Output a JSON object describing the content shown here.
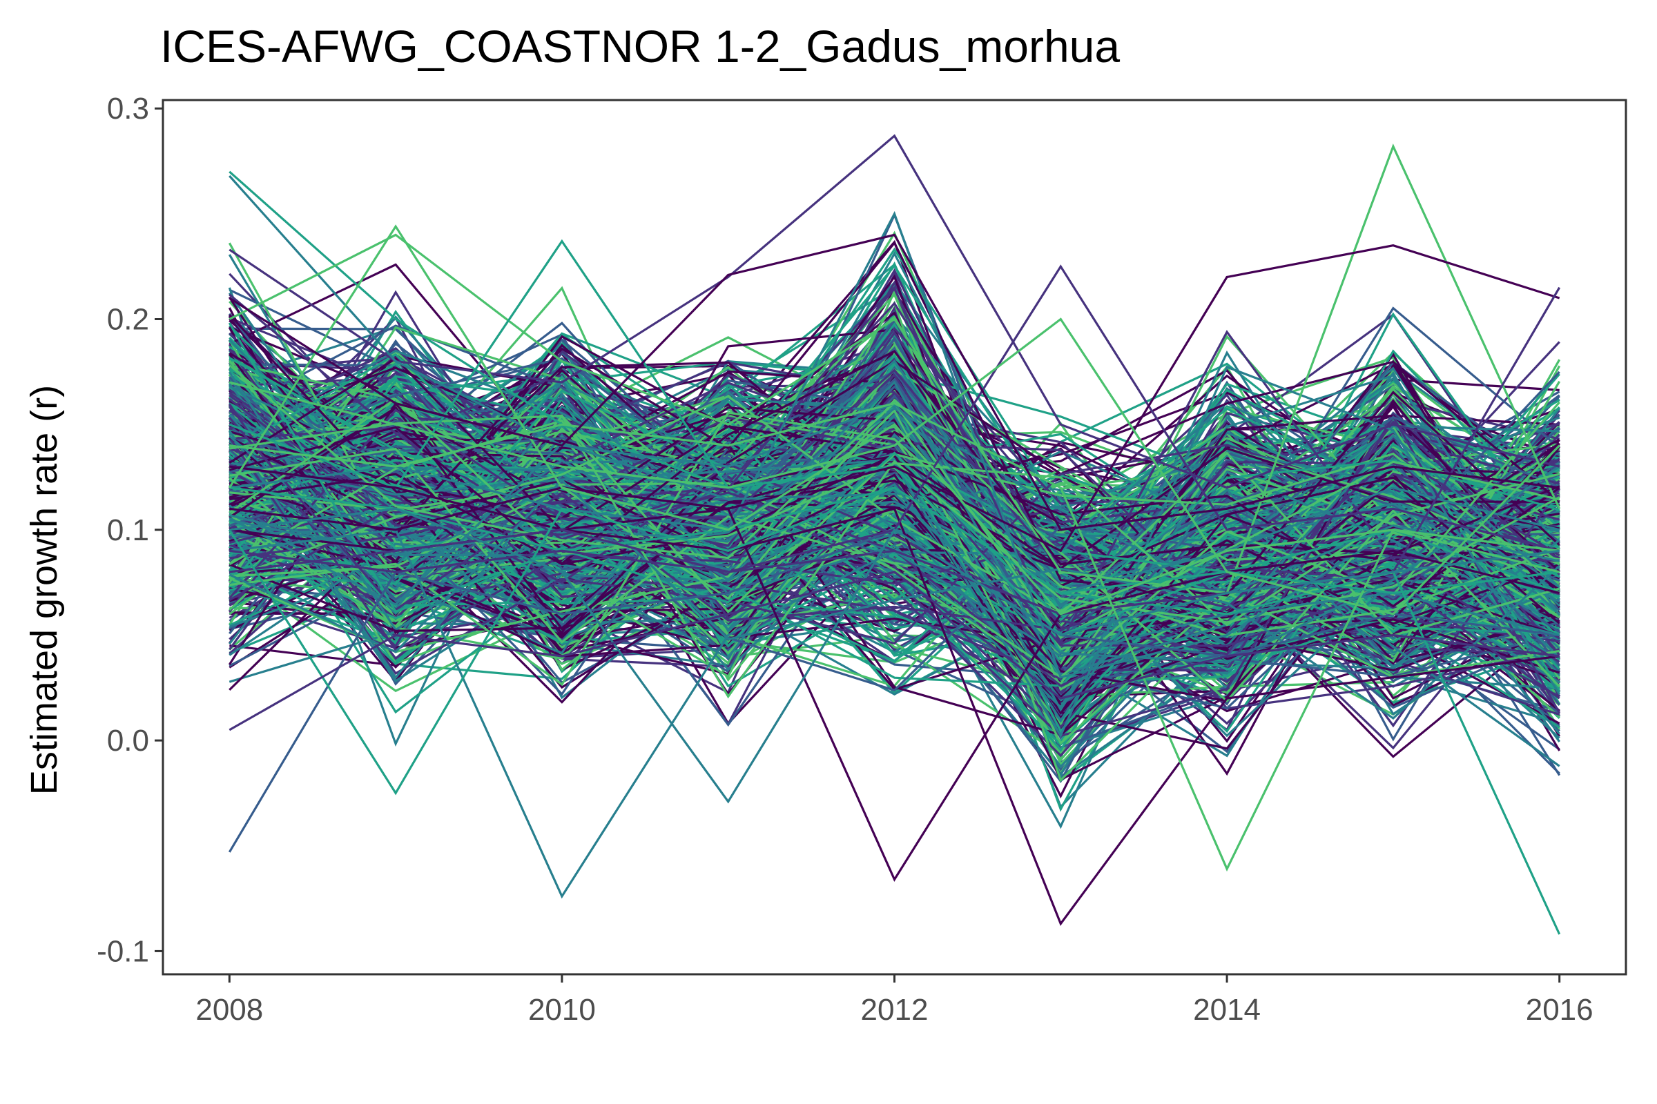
{
  "chart_data": {
    "type": "line",
    "title": "ICES-AFWG_COASTNOR 1-2_Gadus_morhua",
    "xlabel": "",
    "ylabel": "Estimated growth rate (r)",
    "xlim": [
      2007.6,
      2016.4
    ],
    "ylim": [
      -0.111,
      0.304
    ],
    "x": [
      2008,
      2009,
      2010,
      2011,
      2012,
      2013,
      2014,
      2015,
      2016
    ],
    "xticks": [
      2008,
      2010,
      2012,
      2014,
      2016
    ],
    "xtick_labels": [
      "2008",
      "2010",
      "2012",
      "2014",
      "2016"
    ],
    "yticks": [
      -0.1,
      0.0,
      0.1,
      0.2,
      0.3
    ],
    "ytick_labels": [
      "-0.1",
      "0.0",
      "0.1",
      "0.2",
      "0.3"
    ],
    "grid": false,
    "legend": "none",
    "palette": [
      "#440154",
      "#46327e",
      "#365c8d",
      "#277f8e",
      "#1fa187",
      "#4ac16d"
    ],
    "summary": {
      "mean": [
        0.125,
        0.115,
        0.11,
        0.105,
        0.13,
        0.06,
        0.09,
        0.1,
        0.085
      ],
      "spread": [
        0.055,
        0.055,
        0.055,
        0.05,
        0.06,
        0.05,
        0.055,
        0.055,
        0.055
      ]
    },
    "series": [
      {
        "values": [
          0.233,
          0.18,
          0.17,
          0.22,
          0.287,
          0.15,
          0.12,
          0.15,
          0.13
        ],
        "color": "#46327e"
      },
      {
        "values": [
          0.12,
          0.13,
          0.11,
          0.1,
          0.25,
          0.03,
          0.05,
          0.1,
          0.09
        ],
        "color": "#277f8e"
      },
      {
        "values": [
          0.27,
          0.2,
          0.15,
          0.12,
          0.13,
          0.09,
          0.08,
          0.1,
          0.07
        ],
        "color": "#1fa187"
      },
      {
        "values": [
          0.268,
          0.18,
          0.14,
          0.13,
          0.16,
          0.07,
          0.09,
          0.12,
          0.1
        ],
        "color": "#277f8e"
      },
      {
        "values": [
          -0.053,
          0.08,
          0.06,
          0.07,
          0.1,
          0.05,
          0.04,
          0.06,
          0.05
        ],
        "color": "#365c8d"
      },
      {
        "values": [
          0.1,
          0.09,
          0.1,
          0.09,
          0.11,
          -0.087,
          0.02,
          0.03,
          0.04
        ],
        "color": "#440154"
      },
      {
        "values": [
          0.2,
          0.24,
          0.18,
          0.15,
          0.2,
          0.08,
          0.07,
          0.282,
          0.11
        ],
        "color": "#4ac16d"
      },
      {
        "values": [
          0.15,
          0.12,
          0.237,
          0.12,
          0.13,
          0.05,
          0.08,
          0.1,
          0.09
        ],
        "color": "#1fa187"
      },
      {
        "values": [
          0.09,
          0.1,
          -0.074,
          0.05,
          0.09,
          0.04,
          0.06,
          0.07,
          0.05
        ],
        "color": "#277f8e"
      },
      {
        "values": [
          0.12,
          0.11,
          0.09,
          0.1,
          0.12,
          0.07,
          0.06,
          0.08,
          -0.092
        ],
        "color": "#1fa187"
      },
      {
        "values": [
          0.13,
          0.12,
          0.1,
          0.11,
          -0.066,
          0.06,
          0.08,
          0.09,
          0.07
        ],
        "color": "#440154"
      },
      {
        "values": [
          0.08,
          0.09,
          0.1,
          0.08,
          0.1,
          0.225,
          0.1,
          0.11,
          0.09
        ],
        "color": "#46327e"
      },
      {
        "values": [
          0.11,
          0.1,
          0.12,
          0.11,
          0.13,
          0.09,
          0.22,
          0.235,
          0.21
        ],
        "color": "#440154"
      },
      {
        "values": [
          0.09,
          0.08,
          0.09,
          0.08,
          0.09,
          0.06,
          0.07,
          0.08,
          0.215
        ],
        "color": "#46327e"
      },
      {
        "values": [
          0.14,
          0.13,
          0.15,
          0.14,
          0.16,
          0.12,
          -0.061,
          0.1,
          0.09
        ],
        "color": "#4ac16d"
      },
      {
        "values": [
          0.1,
          -0.025,
          0.11,
          0.09,
          0.12,
          0.07,
          0.08,
          0.07,
          0.08
        ],
        "color": "#1fa187"
      },
      {
        "values": [
          0.1,
          0.11,
          0.08,
          -0.029,
          0.1,
          0.05,
          0.07,
          0.08,
          0.09
        ],
        "color": "#277f8e"
      },
      {
        "values": [
          0.12,
          0.244,
          0.12,
          0.1,
          0.15,
          0.06,
          0.09,
          0.1,
          0.08
        ],
        "color": "#4ac16d"
      },
      {
        "values": [
          0.21,
          0.16,
          0.14,
          0.221,
          0.24,
          0.1,
          0.11,
          0.13,
          0.12
        ],
        "color": "#440154"
      },
      {
        "values": [
          0.005,
          0.05,
          0.04,
          0.06,
          0.08,
          0.02,
          0.04,
          0.05,
          0.04
        ],
        "color": "#46327e"
      },
      {
        "values": [
          0.17,
          0.15,
          0.13,
          0.12,
          0.14,
          0.2,
          0.08,
          0.06,
          0.14
        ],
        "color": "#4ac16d"
      }
    ]
  }
}
